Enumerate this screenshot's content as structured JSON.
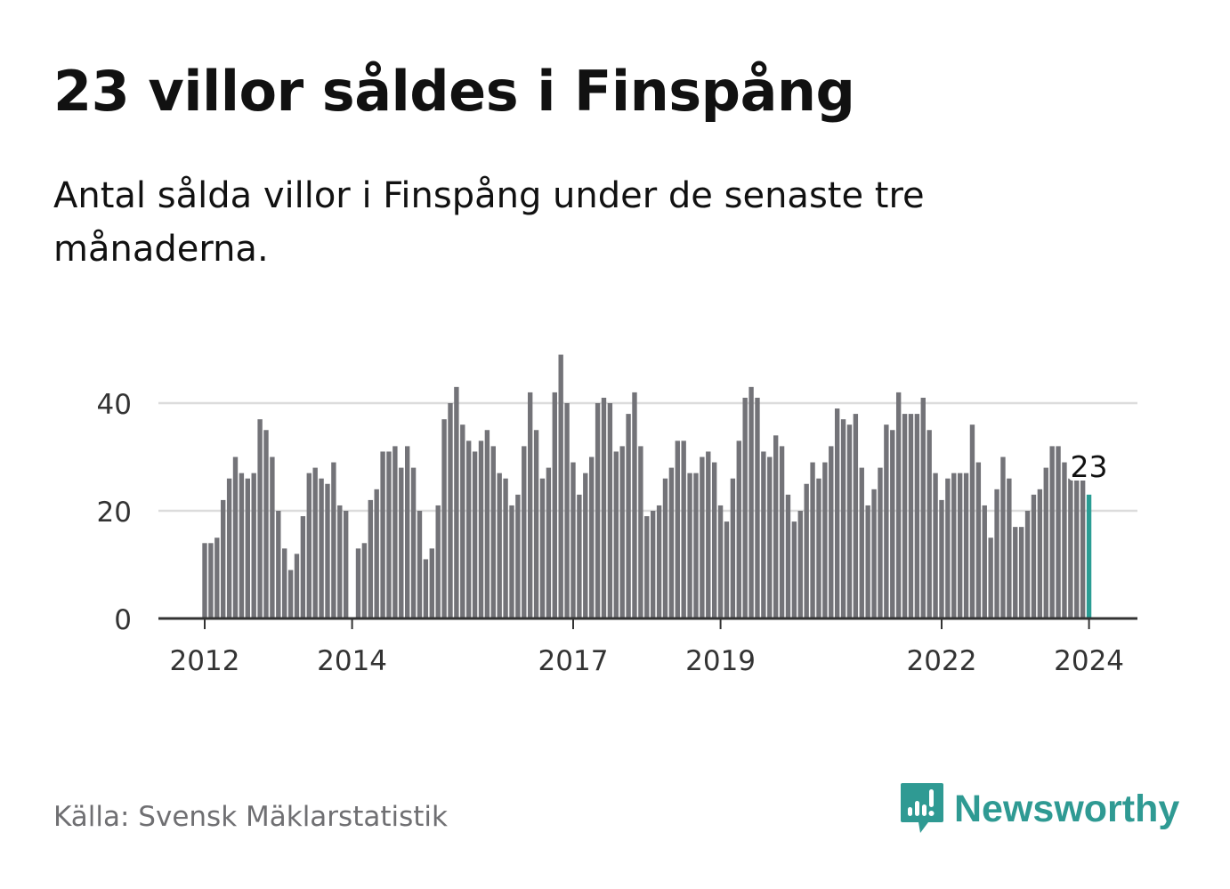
{
  "title": "23 villor såldes i Finspång",
  "subtitle": "Antal sålda villor i Finspång under de senaste tre månaderna.",
  "source": "Källa: Svensk Mäklarstatistik",
  "brand": "Newsworthy",
  "colors": {
    "bar": "#737378",
    "highlight": "#2a9d94",
    "grid": "#dcdcdc",
    "axis": "#333333",
    "brand": "#2f9a93"
  },
  "chart_data": {
    "type": "bar",
    "title": "23 villor såldes i Finspång",
    "xlabel": "",
    "ylabel": "",
    "ylim": [
      0,
      50
    ],
    "yticks": [
      0,
      20,
      40
    ],
    "x_start": 2012.0,
    "x_step": 0.08333,
    "xticks": [
      2012,
      2014,
      2017,
      2019,
      2022,
      2024
    ],
    "grid": true,
    "highlight_label": "23",
    "values": [
      14,
      14,
      15,
      22,
      26,
      30,
      27,
      26,
      27,
      37,
      35,
      30,
      20,
      13,
      9,
      12,
      19,
      27,
      28,
      26,
      25,
      29,
      21,
      20,
      0,
      13,
      14,
      22,
      24,
      31,
      31,
      32,
      28,
      32,
      28,
      20,
      11,
      13,
      21,
      37,
      40,
      43,
      36,
      33,
      31,
      33,
      35,
      32,
      27,
      26,
      21,
      23,
      32,
      42,
      35,
      26,
      28,
      42,
      49,
      40,
      29,
      23,
      27,
      30,
      40,
      41,
      40,
      31,
      32,
      38,
      42,
      32,
      19,
      20,
      21,
      26,
      28,
      33,
      33,
      27,
      27,
      30,
      31,
      29,
      21,
      18,
      26,
      33,
      41,
      43,
      41,
      31,
      30,
      34,
      32,
      23,
      18,
      20,
      25,
      29,
      26,
      29,
      32,
      39,
      37,
      36,
      38,
      28,
      21,
      24,
      28,
      36,
      35,
      42,
      38,
      38,
      38,
      41,
      35,
      27,
      22,
      26,
      27,
      27,
      27,
      36,
      29,
      21,
      15,
      24,
      30,
      26,
      17,
      17,
      20,
      23,
      24,
      28,
      32,
      32,
      29,
      26,
      26,
      26,
      23
    ]
  }
}
